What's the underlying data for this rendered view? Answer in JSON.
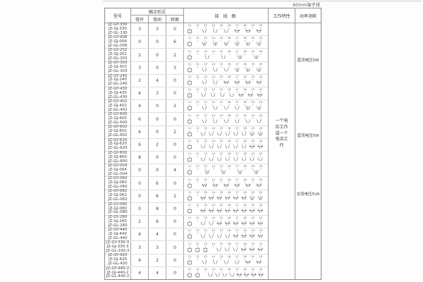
{
  "corner_note": "60mm端子排",
  "colors": {
    "outer_border": "#8a8a8a",
    "grid_line": "#9a9a9a",
    "dotted_line": "#bdbdbd",
    "text": "#444444",
    "diagram_ink": "#555555",
    "background": "#ffffff"
  },
  "table": {
    "headers": {
      "model": "型号",
      "contact_form": "触点形式",
      "normally_open": "常开",
      "normally_closed": "常闭",
      "changeover": "转换",
      "wiring_diagram": "接 线 图",
      "working_characteristic": "工作特性",
      "power_consumption": "功率消耗"
    },
    "terminals": [
      "11",
      "12",
      "13",
      "14",
      "15",
      "16",
      "17",
      "18",
      "19",
      "20"
    ],
    "working_characteristic_note": "一个电压工作或一个电流工作",
    "power_groups": [
      "直流电压5W",
      "直流电压5W",
      "交流电压5VA"
    ],
    "rows": [
      {
        "models": [
          "JZ-GY-330",
          "JZ-GJ-330",
          "JZ-GL-330"
        ],
        "no": "3",
        "nc": "3",
        "co": "0",
        "coils": 1
      },
      {
        "models": [
          "JZ-GY-006",
          "JZ-GJ-006",
          "JZ-GL-006"
        ],
        "no": "0",
        "nc": "0",
        "co": "6",
        "coils": 1
      },
      {
        "models": [
          "JZ-GY-202",
          "JZ-GJ-202",
          "JZ-GL-202"
        ],
        "no": "2",
        "nc": "0",
        "co": "2",
        "coils": 1
      },
      {
        "models": [
          "JZ-GY-303",
          "JZ-GJ-303",
          "JZ-GL-303"
        ],
        "no": "3",
        "nc": "0",
        "co": "3",
        "coils": 1
      },
      {
        "models": [
          "JZ-GY-240",
          "JZ-GJ-240",
          "JZ-GL-240"
        ],
        "no": "2",
        "nc": "4",
        "co": "0",
        "coils": 1
      },
      {
        "models": [
          "JZ-GY-430",
          "JZ-GJ-430",
          "JZ-GL-430"
        ],
        "no": "4",
        "nc": "3",
        "co": "0",
        "coils": 1
      },
      {
        "models": [
          "JZ-GY-402",
          "JZ-GJ-402",
          "JZ-GL-402"
        ],
        "no": "4",
        "nc": "0",
        "co": "2",
        "coils": 1
      },
      {
        "models": [
          "JZ-GY-600",
          "JZ-GJ-600",
          "JZ-GL-600"
        ],
        "no": "6",
        "nc": "0",
        "co": "0",
        "coils": 1
      },
      {
        "models": [
          "JZ-GY-602",
          "JZ-GJ-602",
          "JZ-GL-602"
        ],
        "no": "6",
        "nc": "0",
        "co": "2",
        "coils": 1
      },
      {
        "models": [
          "JZ-GY-620",
          "JZ-GJ-620",
          "JZ-GL-620"
        ],
        "no": "6",
        "nc": "2",
        "co": "0",
        "coils": 1
      },
      {
        "models": [
          "JZ-GY-800",
          "JZ-GJ-800",
          "JZ-GL-800"
        ],
        "no": "8",
        "nc": "0",
        "co": "0",
        "coils": 1
      },
      {
        "models": [
          "JZ-GY-004",
          "JZ-GJ-004",
          "JZ-GL-004"
        ],
        "no": "0",
        "nc": "0",
        "co": "4",
        "coils": 1
      },
      {
        "models": [
          "JZ-GY-060",
          "JZ-GJ-060",
          "JZ-GL-060"
        ],
        "no": "0",
        "nc": "6",
        "co": "0",
        "coils": 1
      },
      {
        "models": [
          "JZ-GY-062",
          "JZ-GJ-062",
          "JZ-GL-062"
        ],
        "no": "0",
        "nc": "6",
        "co": "2",
        "coils": 1
      },
      {
        "models": [
          "JZ-GY-080",
          "JZ-GJ-080",
          "JZ-GL-080"
        ],
        "no": "0",
        "nc": "8",
        "co": "0",
        "coils": 1
      },
      {
        "models": [
          "JZ-GY-260",
          "JZ-GJ-260",
          "JZ-GL-260"
        ],
        "no": "2",
        "nc": "6",
        "co": "0",
        "coils": 1
      },
      {
        "models": [
          "JZ-GY-440",
          "JZ-GJ-440",
          "JZ-GL-440"
        ],
        "no": "4",
        "nc": "4",
        "co": "0",
        "coils": 1
      },
      {
        "models": [
          "JZ-GY-330-3",
          "JZ-GJ-330-3",
          "JZ-GL-330-3"
        ],
        "no": "3",
        "nc": "3",
        "co": "0",
        "coils": 3
      },
      {
        "models": [
          "JZ-GY-420",
          "JZ-GJ-420",
          "JZ-GL-420"
        ],
        "no": "4",
        "nc": "2",
        "co": "0",
        "coils": 1
      },
      {
        "models": [
          "JZ-GY-440-2",
          "JZ-GJ-440-2",
          "JZ-GL-440-2"
        ],
        "no": "4",
        "nc": "4",
        "co": "0",
        "coils": 2
      }
    ]
  }
}
